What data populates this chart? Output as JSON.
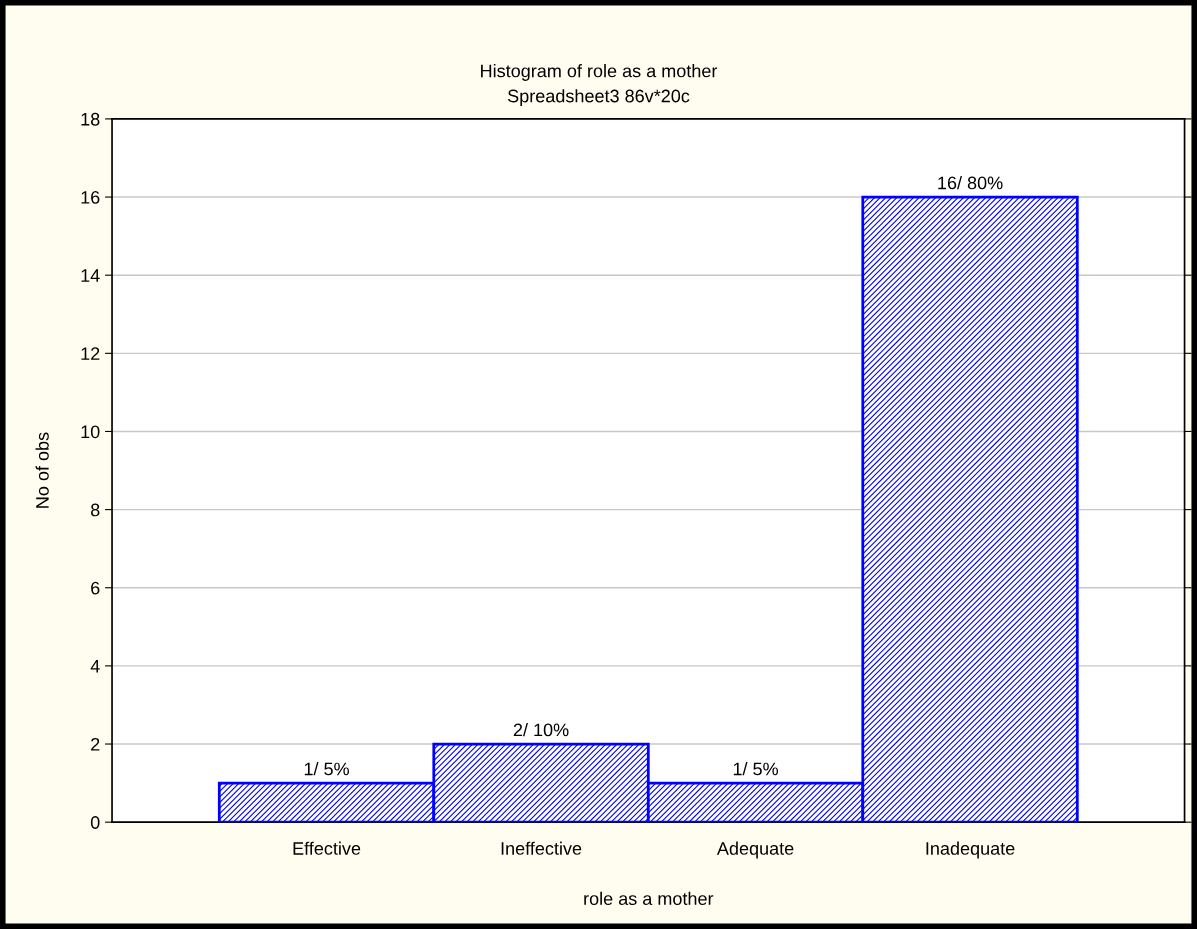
{
  "chart_data": {
    "type": "bar",
    "title": "Histogram of role as a mother",
    "subtitle": "Spreadsheet3 86v*20c",
    "xlabel": "role as a mother",
    "ylabel": "No of obs",
    "categories": [
      "Effective",
      "Ineffective",
      "Adequate",
      "Inadequate"
    ],
    "values": [
      1,
      2,
      1,
      16
    ],
    "value_labels": [
      "1/ 5%",
      "2/ 10%",
      "1/ 5%",
      "16/ 80%"
    ],
    "color": "#0000ff",
    "ylim": [
      0,
      18
    ],
    "yticks": [
      0,
      2,
      4,
      6,
      8,
      10,
      12,
      14,
      16,
      18
    ],
    "grid": "y"
  }
}
